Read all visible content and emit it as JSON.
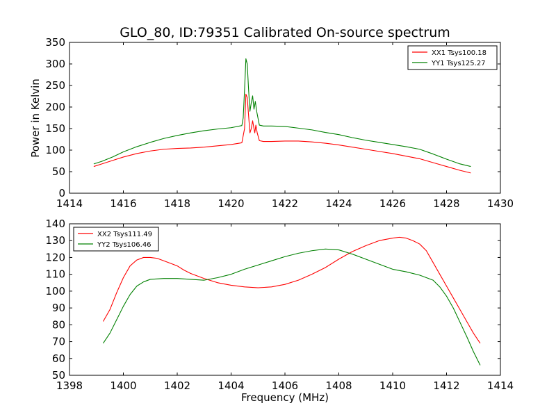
{
  "chart_data": [
    {
      "type": "line",
      "title": "GLO_80, ID:79351 Calibrated On-source spectrum",
      "xlabel": "",
      "ylabel": "Power in Kelvin",
      "xlim": [
        1414,
        1430
      ],
      "ylim": [
        0,
        350
      ],
      "xticks": [
        1414,
        1416,
        1418,
        1420,
        1422,
        1424,
        1426,
        1428,
        1430
      ],
      "yticks": [
        0,
        50,
        100,
        150,
        200,
        250,
        300,
        350
      ],
      "grid": false,
      "legend_position": "top-right",
      "series": [
        {
          "name": "XX1 Tsys100.18",
          "color": "#ff0000",
          "points": [
            [
              1414.9,
              62
            ],
            [
              1415.2,
              68
            ],
            [
              1415.6,
              76
            ],
            [
              1416.0,
              84
            ],
            [
              1416.5,
              92
            ],
            [
              1417.0,
              98
            ],
            [
              1417.5,
              102
            ],
            [
              1418.0,
              104
            ],
            [
              1418.5,
              105
            ],
            [
              1419.0,
              107
            ],
            [
              1419.5,
              110
            ],
            [
              1420.0,
              113
            ],
            [
              1420.4,
              117
            ],
            [
              1420.5,
              150
            ],
            [
              1420.55,
              230
            ],
            [
              1420.6,
              222
            ],
            [
              1420.65,
              180
            ],
            [
              1420.7,
              140
            ],
            [
              1420.75,
              150
            ],
            [
              1420.8,
              168
            ],
            [
              1420.85,
              150
            ],
            [
              1420.88,
              140
            ],
            [
              1420.92,
              158
            ],
            [
              1420.97,
              140
            ],
            [
              1421.05,
              122
            ],
            [
              1421.2,
              120
            ],
            [
              1421.5,
              120
            ],
            [
              1422.0,
              121
            ],
            [
              1422.5,
              121
            ],
            [
              1423.0,
              119
            ],
            [
              1423.5,
              116
            ],
            [
              1424.0,
              112
            ],
            [
              1424.5,
              107
            ],
            [
              1425.0,
              102
            ],
            [
              1425.5,
              97
            ],
            [
              1426.0,
              92
            ],
            [
              1426.5,
              86
            ],
            [
              1427.0,
              80
            ],
            [
              1427.5,
              71
            ],
            [
              1428.0,
              62
            ],
            [
              1428.5,
              53
            ],
            [
              1428.9,
              47
            ]
          ]
        },
        {
          "name": "YY1 Tsys125.27",
          "color": "#008000",
          "points": [
            [
              1414.9,
              68
            ],
            [
              1415.2,
              74
            ],
            [
              1415.6,
              84
            ],
            [
              1416.0,
              96
            ],
            [
              1416.5,
              108
            ],
            [
              1417.0,
              118
            ],
            [
              1417.5,
              127
            ],
            [
              1418.0,
              134
            ],
            [
              1418.5,
              140
            ],
            [
              1419.0,
              145
            ],
            [
              1419.5,
              149
            ],
            [
              1420.0,
              152
            ],
            [
              1420.4,
              157
            ],
            [
              1420.45,
              175
            ],
            [
              1420.5,
              240
            ],
            [
              1420.55,
              312
            ],
            [
              1420.6,
              300
            ],
            [
              1420.65,
              240
            ],
            [
              1420.7,
              190
            ],
            [
              1420.75,
              210
            ],
            [
              1420.8,
              226
            ],
            [
              1420.85,
              195
            ],
            [
              1420.9,
              213
            ],
            [
              1420.95,
              190
            ],
            [
              1421.05,
              158
            ],
            [
              1421.2,
              156
            ],
            [
              1421.5,
              156
            ],
            [
              1422.0,
              155
            ],
            [
              1422.5,
              151
            ],
            [
              1423.0,
              147
            ],
            [
              1423.5,
              141
            ],
            [
              1424.0,
              136
            ],
            [
              1424.5,
              129
            ],
            [
              1425.0,
              123
            ],
            [
              1425.5,
              118
            ],
            [
              1426.0,
              113
            ],
            [
              1426.5,
              108
            ],
            [
              1427.0,
              102
            ],
            [
              1427.5,
              91
            ],
            [
              1428.0,
              79
            ],
            [
              1428.5,
              68
            ],
            [
              1428.9,
              62
            ]
          ]
        }
      ]
    },
    {
      "type": "line",
      "title": "",
      "xlabel": "Frequency (MHz)",
      "ylabel": "",
      "xlim": [
        1398,
        1414
      ],
      "ylim": [
        50,
        140
      ],
      "xticks": [
        1398,
        1400,
        1402,
        1404,
        1406,
        1408,
        1410,
        1412,
        1414
      ],
      "yticks": [
        50,
        60,
        70,
        80,
        90,
        100,
        110,
        120,
        130,
        140
      ],
      "grid": false,
      "legend_position": "top-left",
      "series": [
        {
          "name": "XX2 Tsys111.49",
          "color": "#ff0000",
          "points": [
            [
              1399.25,
              82
            ],
            [
              1399.5,
              89
            ],
            [
              1399.75,
              99
            ],
            [
              1400.0,
              108
            ],
            [
              1400.25,
              115
            ],
            [
              1400.5,
              118.5
            ],
            [
              1400.75,
              120
            ],
            [
              1401.0,
              120
            ],
            [
              1401.25,
              119.5
            ],
            [
              1401.5,
              118
            ],
            [
              1401.75,
              116.5
            ],
            [
              1402.0,
              115
            ],
            [
              1402.25,
              112.5
            ],
            [
              1402.5,
              110.5
            ],
            [
              1402.75,
              109
            ],
            [
              1403.0,
              107.5
            ],
            [
              1403.5,
              105
            ],
            [
              1404.0,
              103.5
            ],
            [
              1404.5,
              102.5
            ],
            [
              1405.0,
              102
            ],
            [
              1405.5,
              102.5
            ],
            [
              1406.0,
              104
            ],
            [
              1406.5,
              106.5
            ],
            [
              1407.0,
              110
            ],
            [
              1407.5,
              114
            ],
            [
              1408.0,
              119
            ],
            [
              1408.5,
              123.5
            ],
            [
              1409.0,
              127
            ],
            [
              1409.5,
              130
            ],
            [
              1410.0,
              131.5
            ],
            [
              1410.25,
              132
            ],
            [
              1410.5,
              131.5
            ],
            [
              1410.75,
              130
            ],
            [
              1411.0,
              128
            ],
            [
              1411.25,
              124
            ],
            [
              1411.5,
              117
            ],
            [
              1411.75,
              110
            ],
            [
              1412.0,
              103
            ],
            [
              1412.25,
              96
            ],
            [
              1412.5,
              89
            ],
            [
              1412.75,
              82
            ],
            [
              1413.0,
              75
            ],
            [
              1413.25,
              69
            ]
          ]
        },
        {
          "name": "YY2 Tsys106.46",
          "color": "#008000",
          "points": [
            [
              1399.25,
              69
            ],
            [
              1399.5,
              75
            ],
            [
              1399.75,
              83
            ],
            [
              1400.0,
              91
            ],
            [
              1400.25,
              98
            ],
            [
              1400.5,
              103
            ],
            [
              1400.75,
              105.5
            ],
            [
              1401.0,
              107
            ],
            [
              1401.5,
              107.5
            ],
            [
              1402.0,
              107.5
            ],
            [
              1402.5,
              107
            ],
            [
              1403.0,
              106.5
            ],
            [
              1403.5,
              108
            ],
            [
              1404.0,
              110
            ],
            [
              1404.5,
              113
            ],
            [
              1405.0,
              115.5
            ],
            [
              1405.5,
              118
            ],
            [
              1406.0,
              120.5
            ],
            [
              1406.5,
              122.5
            ],
            [
              1407.0,
              124
            ],
            [
              1407.5,
              125
            ],
            [
              1408.0,
              124.5
            ],
            [
              1408.5,
              122
            ],
            [
              1409.0,
              119
            ],
            [
              1409.5,
              116
            ],
            [
              1410.0,
              113
            ],
            [
              1410.5,
              111.5
            ],
            [
              1411.0,
              109.5
            ],
            [
              1411.5,
              106.5
            ],
            [
              1411.75,
              102.5
            ],
            [
              1412.0,
              97
            ],
            [
              1412.25,
              90
            ],
            [
              1412.5,
              81.5
            ],
            [
              1412.75,
              73
            ],
            [
              1413.0,
              64
            ],
            [
              1413.25,
              56
            ]
          ]
        }
      ]
    }
  ]
}
